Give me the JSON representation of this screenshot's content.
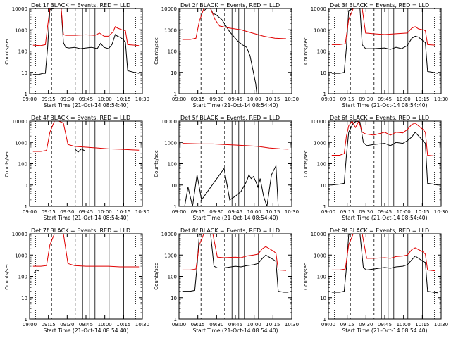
{
  "figure": {
    "xtick_labels": [
      "09:00",
      "09:15",
      "09:30",
      "09:45",
      "10:00",
      "10:15",
      "10:30"
    ],
    "xlabel": "Start Time (21-Oct-14 08:54:40)",
    "ylabel": "Counts/sec",
    "ytick_labels": [
      "1",
      "10",
      "100",
      "1000",
      "10000"
    ],
    "colors": {
      "events": "#000000",
      "lld": "#e00000",
      "axis": "#000000"
    }
  },
  "chart_data": [
    {
      "type": "line",
      "title": "Det 1f BLACK = Events, RED = LLD",
      "xlim": [
        0,
        1
      ],
      "ylim": [
        1,
        10000
      ],
      "yscale": "log",
      "series": [
        {
          "name": "Events",
          "color": "#000000",
          "x": [
            0.03,
            0.08,
            0.12,
            0.14,
            0.16,
            0.18,
            0.22,
            0.25,
            0.28,
            0.3,
            0.32,
            0.35,
            0.4,
            0.45,
            0.5,
            0.55,
            0.6,
            0.63,
            0.66,
            0.7,
            0.73,
            0.76,
            0.78,
            0.8,
            0.83,
            0.85,
            0.87,
            0.93,
            0.97
          ],
          "y": [
            8,
            8,
            9,
            9,
            150,
            9000,
            10000,
            10000,
            10000,
            250,
            150,
            140,
            150,
            130,
            140,
            150,
            130,
            230,
            150,
            130,
            200,
            600,
            500,
            450,
            350,
            250,
            12,
            10,
            9
          ]
        },
        {
          "name": "LLD",
          "color": "#e00000",
          "x": [
            0.03,
            0.1,
            0.14,
            0.16,
            0.18,
            0.22,
            0.25,
            0.28,
            0.3,
            0.32,
            0.4,
            0.5,
            0.58,
            0.62,
            0.66,
            0.7,
            0.74,
            0.76,
            0.78,
            0.82,
            0.85,
            0.87,
            0.93,
            0.97
          ],
          "y": [
            190,
            180,
            200,
            1500,
            10000,
            10000,
            10000,
            10000,
            600,
            550,
            550,
            580,
            550,
            700,
            500,
            500,
            800,
            1400,
            1200,
            1000,
            900,
            200,
            190,
            180
          ]
        }
      ]
    },
    {
      "type": "line",
      "title": "Det 2f BLACK = Events, RED = LLD",
      "xlim": [
        0,
        1
      ],
      "ylim": [
        1,
        10000
      ],
      "yscale": "log",
      "series": [
        {
          "name": "Events",
          "color": "#000000",
          "x": [
            0.22,
            0.25,
            0.28,
            0.3,
            0.33,
            0.38,
            0.45,
            0.52,
            0.56,
            0.6,
            0.63,
            0.66,
            0.68,
            0.69
          ],
          "y": [
            8000,
            10000,
            10000,
            6000,
            5000,
            3000,
            800,
            300,
            200,
            150,
            60,
            10,
            3,
            1
          ]
        },
        {
          "name": "LLD",
          "color": "#e00000",
          "x": [
            0.03,
            0.1,
            0.15,
            0.18,
            0.22,
            0.25,
            0.28,
            0.32,
            0.36,
            0.45,
            0.55,
            0.65,
            0.75,
            0.85,
            0.95
          ],
          "y": [
            350,
            350,
            400,
            2500,
            10000,
            10000,
            10000,
            3000,
            1500,
            1200,
            1000,
            700,
            500,
            400,
            380
          ]
        }
      ]
    },
    {
      "type": "line",
      "title": "Det 3f BLACK = Events, RED = LLD",
      "xlim": [
        0,
        1
      ],
      "ylim": [
        1,
        10000
      ],
      "yscale": "log",
      "series": [
        {
          "name": "Events",
          "color": "#000000",
          "x": [
            0.03,
            0.1,
            0.14,
            0.16,
            0.18,
            0.22,
            0.25,
            0.28,
            0.3,
            0.33,
            0.4,
            0.5,
            0.55,
            0.6,
            0.65,
            0.7,
            0.74,
            0.77,
            0.8,
            0.84,
            0.86,
            0.88,
            0.93,
            0.97
          ],
          "y": [
            9,
            9,
            10,
            150,
            8000,
            10000,
            10000,
            10000,
            200,
            130,
            130,
            140,
            120,
            150,
            130,
            180,
            400,
            500,
            450,
            300,
            250,
            11,
            10,
            9
          ]
        },
        {
          "name": "LLD",
          "color": "#e00000",
          "x": [
            0.03,
            0.1,
            0.15,
            0.18,
            0.22,
            0.26,
            0.3,
            0.33,
            0.4,
            0.5,
            0.6,
            0.7,
            0.74,
            0.77,
            0.8,
            0.84,
            0.86,
            0.88,
            0.95
          ],
          "y": [
            200,
            200,
            220,
            3000,
            10000,
            10000,
            10000,
            700,
            650,
            600,
            650,
            700,
            1200,
            1400,
            1100,
            1000,
            900,
            200,
            190
          ]
        }
      ]
    },
    {
      "type": "line",
      "title": "Det 4f BLACK = Events, RED = LLD",
      "xlim": [
        0,
        1
      ],
      "ylim": [
        1,
        10000
      ],
      "yscale": "log",
      "series": [
        {
          "name": "Events",
          "color": "#000000",
          "x": [
            0.4,
            0.43,
            0.46,
            0.49
          ],
          "y": [
            500,
            350,
            500,
            400
          ]
        },
        {
          "name": "LLD",
          "color": "#e00000",
          "x": [
            0.03,
            0.1,
            0.15,
            0.18,
            0.22,
            0.26,
            0.3,
            0.34,
            0.4,
            0.5,
            0.6,
            0.7,
            0.8,
            0.9,
            0.97
          ],
          "y": [
            380,
            380,
            420,
            3000,
            10000,
            10000,
            8000,
            800,
            650,
            600,
            550,
            500,
            480,
            450,
            430
          ]
        }
      ]
    },
    {
      "type": "line",
      "title": "Det 5f BLACK = Events, RED = LLD",
      "xlim": [
        0,
        1
      ],
      "ylim": [
        1,
        10000
      ],
      "yscale": "log",
      "series": [
        {
          "name": "Events",
          "color": "#000000",
          "x": [
            0.05,
            0.08,
            0.12,
            0.16,
            0.2,
            0.4,
            0.45,
            0.5,
            0.55,
            0.6,
            0.62,
            0.64,
            0.66,
            0.68,
            0.7,
            0.72,
            0.75,
            0.78,
            0.82,
            0.86,
            0.88
          ],
          "y": [
            1,
            8,
            1,
            30,
            2,
            60,
            2,
            3,
            5,
            15,
            30,
            20,
            25,
            15,
            8,
            20,
            3,
            1,
            30,
            80,
            1
          ]
        },
        {
          "name": "LLD",
          "color": "#e00000",
          "x": [
            0.03,
            0.2,
            0.3,
            0.4,
            0.5,
            0.6,
            0.7,
            0.8,
            0.9,
            0.97
          ],
          "y": [
            900,
            850,
            850,
            800,
            750,
            700,
            650,
            550,
            500,
            480
          ]
        }
      ]
    },
    {
      "type": "line",
      "title": "Det 6f BLACK = Events, RED = LLD",
      "xlim": [
        0,
        1
      ],
      "ylim": [
        1,
        10000
      ],
      "yscale": "log",
      "series": [
        {
          "name": "Events",
          "color": "#000000",
          "x": [
            0.03,
            0.1,
            0.14,
            0.16,
            0.18,
            0.22,
            0.25,
            0.28,
            0.31,
            0.34,
            0.4,
            0.5,
            0.55,
            0.6,
            0.66,
            0.7,
            0.74,
            0.77,
            0.8,
            0.84,
            0.86,
            0.88,
            0.93,
            0.97
          ],
          "y": [
            10,
            11,
            12,
            250,
            3000,
            8000,
            10000,
            9000,
            1000,
            700,
            800,
            900,
            700,
            1000,
            900,
            1200,
            1800,
            3000,
            2000,
            1200,
            900,
            12,
            11,
            10
          ]
        },
        {
          "name": "LLD",
          "color": "#e00000",
          "x": [
            0.03,
            0.1,
            0.14,
            0.16,
            0.18,
            0.21,
            0.24,
            0.27,
            0.3,
            0.33,
            0.4,
            0.5,
            0.55,
            0.6,
            0.66,
            0.7,
            0.74,
            0.77,
            0.8,
            0.84,
            0.86,
            0.88,
            0.95
          ],
          "y": [
            250,
            250,
            300,
            2000,
            6000,
            10000,
            5000,
            10000,
            3000,
            2500,
            2200,
            3000,
            2200,
            3000,
            2800,
            4000,
            7000,
            8000,
            6000,
            4000,
            3000,
            250,
            230
          ]
        }
      ]
    },
    {
      "type": "line",
      "title": "Det 7f BLACK = Events, RED = LLD",
      "xlim": [
        0,
        1
      ],
      "ylim": [
        1,
        10000
      ],
      "yscale": "log",
      "series": [
        {
          "name": "Events",
          "color": "#000000",
          "x": [
            0.04,
            0.06,
            0.08
          ],
          "y": [
            150,
            200,
            180
          ]
        },
        {
          "name": "LLD",
          "color": "#e00000",
          "x": [
            0.03,
            0.1,
            0.15,
            0.18,
            0.22,
            0.26,
            0.3,
            0.34,
            0.4,
            0.5,
            0.6,
            0.7,
            0.8,
            0.9,
            0.97
          ],
          "y": [
            300,
            300,
            320,
            3000,
            10000,
            10000,
            10000,
            400,
            320,
            300,
            300,
            300,
            280,
            280,
            280
          ]
        }
      ]
    },
    {
      "type": "line",
      "title": "Det 8f BLACK = Events, RED = LLD",
      "xlim": [
        0,
        1
      ],
      "ylim": [
        1,
        10000
      ],
      "yscale": "log",
      "series": [
        {
          "name": "Events",
          "color": "#000000",
          "x": [
            0.03,
            0.1,
            0.14,
            0.16,
            0.18,
            0.22,
            0.25,
            0.28,
            0.31,
            0.34,
            0.4,
            0.5,
            0.55,
            0.6,
            0.66,
            0.7,
            0.74,
            0.77,
            0.8,
            0.84,
            0.86,
            0.88,
            0.93,
            0.97
          ],
          "y": [
            20,
            20,
            22,
            300,
            9000,
            10000,
            10000,
            10000,
            300,
            250,
            250,
            300,
            280,
            320,
            350,
            400,
            700,
            1000,
            800,
            600,
            500,
            20,
            18,
            18
          ]
        },
        {
          "name": "LLD",
          "color": "#e00000",
          "x": [
            0.03,
            0.1,
            0.15,
            0.18,
            0.22,
            0.26,
            0.3,
            0.34,
            0.4,
            0.5,
            0.55,
            0.6,
            0.66,
            0.7,
            0.74,
            0.77,
            0.8,
            0.84,
            0.86,
            0.88,
            0.95
          ],
          "y": [
            200,
            200,
            220,
            3000,
            10000,
            10000,
            10000,
            800,
            750,
            800,
            750,
            900,
            1000,
            1100,
            2000,
            2500,
            2000,
            1500,
            1200,
            200,
            190
          ]
        }
      ]
    },
    {
      "type": "line",
      "title": "Det 9f BLACK = Events, RED = LLD",
      "xlim": [
        0,
        1
      ],
      "ylim": [
        1,
        10000
      ],
      "yscale": "log",
      "series": [
        {
          "name": "Events",
          "color": "#000000",
          "x": [
            0.03,
            0.1,
            0.14,
            0.16,
            0.18,
            0.22,
            0.25,
            0.28,
            0.31,
            0.34,
            0.4,
            0.5,
            0.55,
            0.6,
            0.66,
            0.7,
            0.74,
            0.77,
            0.8,
            0.84,
            0.86,
            0.88,
            0.93,
            0.97
          ],
          "y": [
            18,
            18,
            20,
            250,
            9000,
            10000,
            10000,
            10000,
            250,
            200,
            220,
            260,
            240,
            280,
            300,
            350,
            600,
            900,
            700,
            500,
            450,
            20,
            18,
            17
          ]
        },
        {
          "name": "LLD",
          "color": "#e00000",
          "x": [
            0.03,
            0.1,
            0.15,
            0.18,
            0.22,
            0.26,
            0.3,
            0.34,
            0.4,
            0.5,
            0.55,
            0.6,
            0.66,
            0.7,
            0.74,
            0.77,
            0.8,
            0.84,
            0.86,
            0.88,
            0.95
          ],
          "y": [
            200,
            200,
            220,
            3000,
            10000,
            10000,
            10000,
            700,
            700,
            750,
            700,
            850,
            900,
            1000,
            1800,
            2200,
            1800,
            1400,
            1100,
            200,
            180
          ]
        }
      ]
    }
  ]
}
